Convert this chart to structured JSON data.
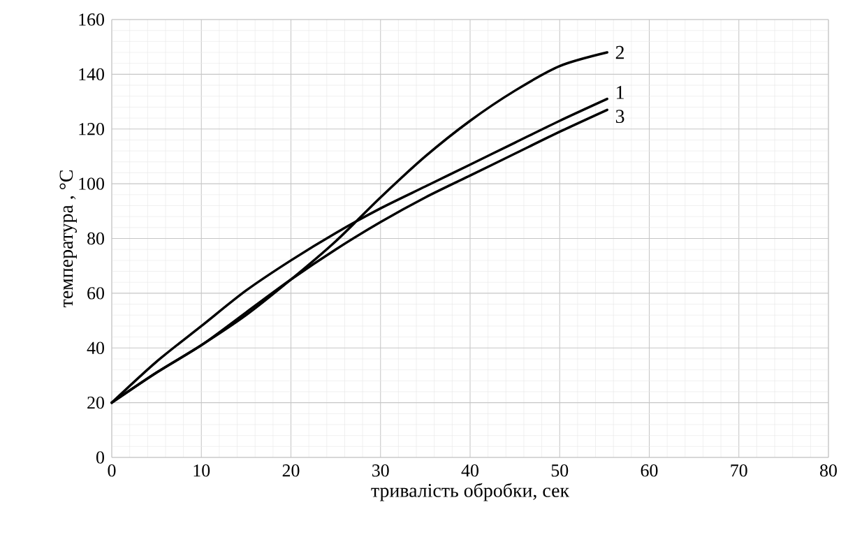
{
  "chart_data": {
    "type": "line",
    "xlabel": "тривалість обробки, сек",
    "ylabel": "температура , °C",
    "xlim": [
      0,
      80
    ],
    "ylim": [
      0,
      160
    ],
    "xticks": [
      0,
      10,
      20,
      30,
      40,
      50,
      60,
      70,
      80
    ],
    "yticks": [
      0,
      20,
      40,
      60,
      80,
      100,
      120,
      140,
      160
    ],
    "grid": true,
    "legend": false,
    "marker": "none",
    "line_style": "solid",
    "x": [
      0,
      5,
      10,
      15,
      20,
      25,
      30,
      35,
      40,
      45,
      50,
      55.3
    ],
    "series": [
      {
        "name": "1",
        "color": "#000000",
        "values": [
          20,
          35,
          48,
          61,
          72,
          82,
          91,
          99,
          107,
          115,
          123,
          131
        ]
      },
      {
        "name": "2",
        "color": "#000000",
        "values": [
          20,
          31,
          41,
          52,
          65,
          79,
          95,
          110,
          123,
          134,
          143,
          148
        ]
      },
      {
        "name": "3",
        "color": "#000000",
        "values": [
          20,
          31,
          41,
          53,
          65,
          76,
          86,
          95,
          103,
          111,
          119,
          127
        ]
      }
    ]
  }
}
